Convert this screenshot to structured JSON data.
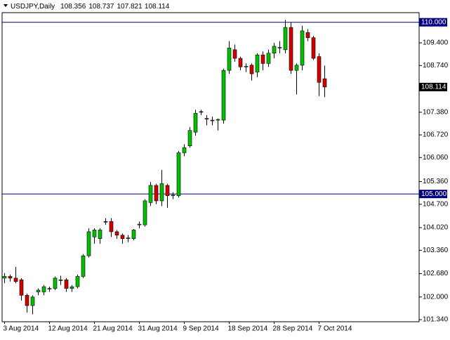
{
  "chart_data": {
    "type": "candlestick",
    "title": "USDJPY,Daily",
    "categories": [
      "3 Aug 2014",
      null,
      null,
      null,
      null,
      null,
      null,
      null,
      "12 Aug 2014",
      null,
      null,
      null,
      null,
      null,
      null,
      null,
      "21 Aug 2014",
      null,
      null,
      null,
      null,
      null,
      null,
      null,
      "31 Aug 2014",
      null,
      null,
      null,
      null,
      null,
      null,
      null,
      "9 Sep 2014",
      null,
      null,
      null,
      null,
      null,
      null,
      null,
      "18 Sep 2014",
      null,
      null,
      null,
      null,
      null,
      null,
      null,
      "28 Sep 2014",
      null,
      null,
      null,
      null,
      null,
      null,
      null,
      "7 Oct 2014",
      null
    ],
    "open": [
      102.55,
      102.6,
      102.55,
      102.5,
      102.05,
      101.75,
      102.15,
      102.15,
      102.25,
      102.25,
      102.5,
      102.5,
      102.25,
      102.3,
      102.6,
      103.2,
      103.75,
      103.7,
      104.2,
      104.2,
      103.9,
      103.8,
      103.7,
      103.7,
      104.1,
      104.1,
      104.75,
      105.25,
      104.8,
      105.25,
      104.95,
      104.95,
      106.2,
      106.4,
      106.8,
      107.4,
      107.2,
      107.15,
      107.15,
      107.15,
      108.6,
      109.2,
      108.95,
      108.7,
      108.75,
      108.55,
      109.05,
      108.8,
      109.1,
      109.25,
      109.2,
      109.85,
      108.6,
      108.75,
      109.7,
      109.55,
      109.0,
      108.356
    ],
    "high": [
      102.7,
      102.65,
      102.88,
      102.55,
      102.1,
      102.05,
      102.25,
      102.35,
      102.3,
      102.6,
      102.62,
      102.55,
      102.35,
      102.65,
      103.25,
      104.0,
      104.0,
      104.0,
      104.3,
      104.3,
      103.95,
      103.85,
      103.8,
      103.98,
      104.2,
      104.85,
      105.35,
      105.3,
      105.7,
      105.3,
      105.05,
      106.25,
      106.45,
      106.95,
      107.45,
      107.45,
      107.3,
      107.25,
      107.2,
      108.65,
      109.45,
      109.35,
      109.0,
      108.8,
      108.8,
      109.1,
      109.15,
      109.2,
      109.4,
      109.45,
      110.07,
      110.0,
      108.8,
      109.9,
      109.8,
      109.6,
      109.1,
      108.737
    ],
    "low": [
      102.4,
      102.45,
      102.4,
      101.9,
      101.55,
      101.5,
      102.05,
      102.05,
      102.15,
      102.2,
      102.35,
      102.15,
      102.15,
      102.25,
      102.55,
      103.15,
      103.55,
      103.55,
      104.1,
      103.75,
      103.7,
      103.55,
      103.6,
      103.65,
      104.0,
      104.05,
      104.65,
      104.7,
      104.65,
      104.6,
      104.85,
      104.9,
      106.1,
      106.35,
      106.7,
      107.3,
      107.0,
      107.0,
      106.85,
      107.05,
      108.5,
      108.85,
      108.6,
      108.55,
      108.3,
      108.4,
      108.6,
      108.7,
      108.95,
      109.1,
      109.1,
      108.5,
      107.9,
      108.6,
      109.45,
      108.9,
      107.85,
      107.821
    ],
    "close": [
      102.6,
      102.55,
      102.45,
      102.05,
      101.75,
      102.0,
      102.2,
      102.3,
      102.25,
      102.55,
      102.5,
      102.25,
      102.3,
      102.6,
      103.2,
      103.9,
      103.95,
      103.95,
      104.18,
      103.9,
      103.8,
      103.7,
      103.72,
      103.95,
      104.12,
      104.8,
      105.25,
      104.8,
      105.3,
      104.95,
      104.97,
      106.2,
      106.35,
      106.85,
      107.35,
      107.38,
      107.18,
      107.13,
      107.17,
      108.6,
      109.25,
      108.95,
      108.7,
      108.72,
      108.5,
      109.05,
      108.8,
      109.1,
      109.3,
      109.27,
      109.85,
      108.6,
      108.75,
      109.75,
      109.55,
      108.95,
      108.25,
      108.114
    ],
    "up_color": "#00c000",
    "down_color": "#d40000",
    "ylim": [
      101.28,
      110.28
    ],
    "yticks": [
      {
        "value": 109.4,
        "label": "109.400"
      },
      {
        "value": 108.74,
        "label": "108.740"
      },
      {
        "value": 107.38,
        "label": "107.380"
      },
      {
        "value": 106.72,
        "label": "106.720"
      },
      {
        "value": 106.06,
        "label": "106.060"
      },
      {
        "value": 105.36,
        "label": "105.360"
      },
      {
        "value": 104.7,
        "label": "104.700"
      },
      {
        "value": 104.02,
        "label": "104.020"
      },
      {
        "value": 103.36,
        "label": "103.360"
      },
      {
        "value": 102.68,
        "label": "102.680"
      },
      {
        "value": 102.0,
        "label": "102.000"
      },
      {
        "value": 101.34,
        "label": "101.340"
      }
    ],
    "hlines": [
      {
        "value": 110,
        "label": "110.000"
      },
      {
        "value": 105,
        "label": "105.000"
      }
    ],
    "hline_color": "#000080"
  }
}
